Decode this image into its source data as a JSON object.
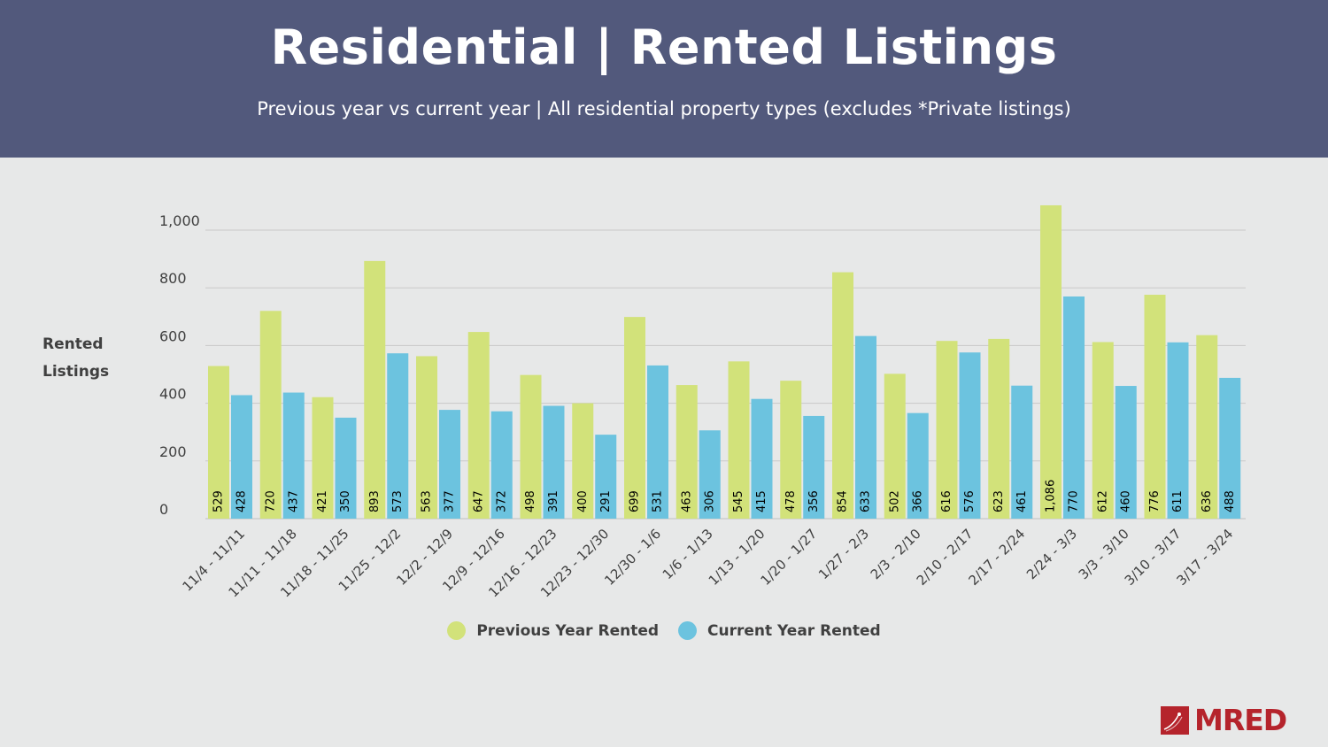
{
  "header": {
    "title": "Residential | Rented Listings",
    "subtitle": "Previous year vs current year | All residential property types (excludes *Private listings)"
  },
  "chart_data": {
    "type": "bar",
    "title": "Residential | Rented Listings",
    "subtitle": "Previous year vs current year | All residential property types (excludes *Private listings)",
    "ylabel": "Rented Listings",
    "ylabel_lines": [
      "Rented",
      "Listings"
    ],
    "xlabel": "",
    "ylim": [
      0,
      1000
    ],
    "yticks": [
      0,
      200,
      400,
      600,
      800,
      1000
    ],
    "ytick_labels": [
      "0",
      "200",
      "400",
      "600",
      "800",
      "1,000"
    ],
    "grid": true,
    "legend_position": "bottom",
    "categories": [
      "11/4 - 11/11",
      "11/11 - 11/18",
      "11/18 - 11/25",
      "11/25 - 12/2",
      "12/2 - 12/9",
      "12/9 - 12/16",
      "12/16 - 12/23",
      "12/23 - 12/30",
      "12/30 - 1/6",
      "1/6 - 1/13",
      "1/13 - 1/20",
      "1/20 - 1/27",
      "1/27 - 2/3",
      "2/3 - 2/10",
      "2/10 - 2/17",
      "2/17 - 2/24",
      "2/24 - 3/3",
      "3/3 - 3/10",
      "3/10 - 3/17",
      "3/17 - 3/24"
    ],
    "series": [
      {
        "name": "Previous Year Rented",
        "color": "#d2e27a",
        "values": [
          529,
          720,
          421,
          893,
          563,
          647,
          498,
          400,
          699,
          463,
          545,
          478,
          854,
          502,
          616,
          623,
          1086,
          612,
          776,
          636
        ],
        "labels": [
          "529",
          "720",
          "421",
          "893",
          "563",
          "647",
          "498",
          "400",
          "699",
          "463",
          "545",
          "478",
          "854",
          "502",
          "616",
          "623",
          "1,086",
          "612",
          "776",
          "636"
        ]
      },
      {
        "name": "Current Year Rented",
        "color": "#6cc3df",
        "values": [
          428,
          437,
          350,
          573,
          377,
          372,
          391,
          291,
          531,
          306,
          415,
          356,
          633,
          366,
          576,
          461,
          770,
          460,
          611,
          488
        ],
        "labels": [
          "428",
          "437",
          "350",
          "573",
          "377",
          "372",
          "391",
          "291",
          "531",
          "306",
          "415",
          "356",
          "633",
          "366",
          "576",
          "461",
          "770",
          "460",
          "611",
          "488"
        ]
      }
    ]
  },
  "logo": {
    "text": "MRED",
    "color": "#b5242c"
  }
}
